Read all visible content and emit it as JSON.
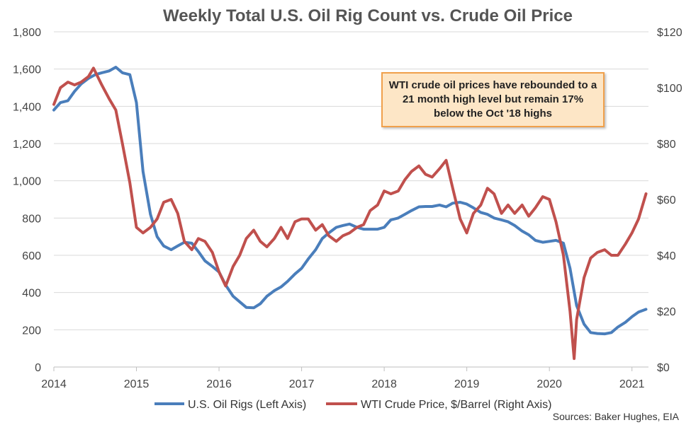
{
  "chart_data": {
    "type": "line",
    "title": "Weekly Total U.S. Oil Rig Count vs. Crude Oil Price",
    "x_ticks": [
      "2014",
      "2015",
      "2016",
      "2017",
      "2018",
      "2019",
      "2020",
      "2021"
    ],
    "x_range": [
      2014.0,
      2021.2
    ],
    "y_left": {
      "range": [
        0,
        1800
      ],
      "ticks": [
        "0",
        "200",
        "400",
        "600",
        "800",
        "1,000",
        "1,200",
        "1,400",
        "1,600",
        "1,800"
      ]
    },
    "y_right": {
      "range": [
        0,
        120
      ],
      "ticks": [
        "$0",
        "$20",
        "$40",
        "$60",
        "$80",
        "$100",
        "$120"
      ]
    },
    "grid": "horizontal",
    "legend_position": "bottom",
    "series": [
      {
        "name": "U.S. Oil Rigs (Left Axis)",
        "axis": "left",
        "color": "#4a7ebb",
        "points": [
          [
            2014.0,
            1380
          ],
          [
            2014.08,
            1420
          ],
          [
            2014.17,
            1430
          ],
          [
            2014.25,
            1480
          ],
          [
            2014.33,
            1520
          ],
          [
            2014.42,
            1550
          ],
          [
            2014.5,
            1570
          ],
          [
            2014.58,
            1580
          ],
          [
            2014.67,
            1590
          ],
          [
            2014.75,
            1610
          ],
          [
            2014.83,
            1580
          ],
          [
            2014.92,
            1570
          ],
          [
            2015.0,
            1420
          ],
          [
            2015.08,
            1050
          ],
          [
            2015.17,
            820
          ],
          [
            2015.25,
            700
          ],
          [
            2015.33,
            650
          ],
          [
            2015.42,
            630
          ],
          [
            2015.5,
            650
          ],
          [
            2015.58,
            670
          ],
          [
            2015.67,
            665
          ],
          [
            2015.75,
            620
          ],
          [
            2015.83,
            570
          ],
          [
            2015.92,
            540
          ],
          [
            2016.0,
            510
          ],
          [
            2016.08,
            440
          ],
          [
            2016.17,
            380
          ],
          [
            2016.25,
            350
          ],
          [
            2016.33,
            320
          ],
          [
            2016.42,
            318
          ],
          [
            2016.5,
            340
          ],
          [
            2016.58,
            380
          ],
          [
            2016.67,
            410
          ],
          [
            2016.75,
            430
          ],
          [
            2016.83,
            460
          ],
          [
            2016.92,
            500
          ],
          [
            2017.0,
            530
          ],
          [
            2017.08,
            580
          ],
          [
            2017.17,
            630
          ],
          [
            2017.25,
            690
          ],
          [
            2017.33,
            720
          ],
          [
            2017.42,
            750
          ],
          [
            2017.5,
            760
          ],
          [
            2017.58,
            768
          ],
          [
            2017.67,
            750
          ],
          [
            2017.75,
            740
          ],
          [
            2017.83,
            740
          ],
          [
            2017.92,
            740
          ],
          [
            2018.0,
            750
          ],
          [
            2018.08,
            790
          ],
          [
            2018.17,
            800
          ],
          [
            2018.25,
            820
          ],
          [
            2018.33,
            840
          ],
          [
            2018.42,
            860
          ],
          [
            2018.5,
            862
          ],
          [
            2018.58,
            862
          ],
          [
            2018.67,
            870
          ],
          [
            2018.75,
            860
          ],
          [
            2018.83,
            880
          ],
          [
            2018.92,
            885
          ],
          [
            2019.0,
            875
          ],
          [
            2019.08,
            855
          ],
          [
            2019.17,
            830
          ],
          [
            2019.25,
            820
          ],
          [
            2019.33,
            800
          ],
          [
            2019.42,
            790
          ],
          [
            2019.5,
            780
          ],
          [
            2019.58,
            760
          ],
          [
            2019.67,
            730
          ],
          [
            2019.75,
            710
          ],
          [
            2019.83,
            680
          ],
          [
            2019.92,
            670
          ],
          [
            2020.0,
            675
          ],
          [
            2020.08,
            680
          ],
          [
            2020.17,
            665
          ],
          [
            2020.25,
            530
          ],
          [
            2020.33,
            330
          ],
          [
            2020.42,
            230
          ],
          [
            2020.5,
            185
          ],
          [
            2020.58,
            180
          ],
          [
            2020.67,
            178
          ],
          [
            2020.75,
            185
          ],
          [
            2020.83,
            215
          ],
          [
            2020.92,
            240
          ],
          [
            2021.0,
            270
          ],
          [
            2021.08,
            295
          ],
          [
            2021.17,
            310
          ]
        ]
      },
      {
        "name": "WTI Crude Price, $/Barrel (Right Axis)",
        "axis": "right",
        "color": "#c0504d",
        "points": [
          [
            2014.0,
            94
          ],
          [
            2014.08,
            100
          ],
          [
            2014.17,
            102
          ],
          [
            2014.25,
            101
          ],
          [
            2014.33,
            102
          ],
          [
            2014.42,
            104
          ],
          [
            2014.48,
            107
          ],
          [
            2014.58,
            101
          ],
          [
            2014.67,
            96
          ],
          [
            2014.75,
            92
          ],
          [
            2014.83,
            80
          ],
          [
            2014.92,
            66
          ],
          [
            2015.0,
            50
          ],
          [
            2015.08,
            48
          ],
          [
            2015.17,
            50
          ],
          [
            2015.25,
            53
          ],
          [
            2015.33,
            59
          ],
          [
            2015.42,
            60
          ],
          [
            2015.5,
            55
          ],
          [
            2015.58,
            45
          ],
          [
            2015.67,
            42
          ],
          [
            2015.75,
            46
          ],
          [
            2015.83,
            45
          ],
          [
            2015.92,
            41
          ],
          [
            2016.0,
            34
          ],
          [
            2016.08,
            29
          ],
          [
            2016.17,
            36
          ],
          [
            2016.25,
            40
          ],
          [
            2016.33,
            46
          ],
          [
            2016.42,
            49
          ],
          [
            2016.5,
            45
          ],
          [
            2016.58,
            43
          ],
          [
            2016.67,
            46
          ],
          [
            2016.75,
            50
          ],
          [
            2016.83,
            46
          ],
          [
            2016.92,
            52
          ],
          [
            2017.0,
            53
          ],
          [
            2017.08,
            53
          ],
          [
            2017.17,
            49
          ],
          [
            2017.25,
            51
          ],
          [
            2017.33,
            47
          ],
          [
            2017.42,
            45
          ],
          [
            2017.5,
            47
          ],
          [
            2017.58,
            48
          ],
          [
            2017.67,
            50
          ],
          [
            2017.75,
            51
          ],
          [
            2017.83,
            56
          ],
          [
            2017.92,
            58
          ],
          [
            2018.0,
            63
          ],
          [
            2018.08,
            62
          ],
          [
            2018.17,
            63
          ],
          [
            2018.25,
            67
          ],
          [
            2018.33,
            70
          ],
          [
            2018.42,
            72
          ],
          [
            2018.5,
            69
          ],
          [
            2018.58,
            68
          ],
          [
            2018.67,
            71
          ],
          [
            2018.75,
            74
          ],
          [
            2018.83,
            64
          ],
          [
            2018.92,
            53
          ],
          [
            2019.0,
            48
          ],
          [
            2019.08,
            55
          ],
          [
            2019.17,
            58
          ],
          [
            2019.25,
            64
          ],
          [
            2019.33,
            62
          ],
          [
            2019.42,
            55
          ],
          [
            2019.5,
            58
          ],
          [
            2019.58,
            55
          ],
          [
            2019.67,
            58
          ],
          [
            2019.75,
            54
          ],
          [
            2019.83,
            57
          ],
          [
            2019.92,
            61
          ],
          [
            2020.0,
            60
          ],
          [
            2020.08,
            52
          ],
          [
            2020.17,
            40
          ],
          [
            2020.25,
            20
          ],
          [
            2020.3,
            3
          ],
          [
            2020.33,
            17
          ],
          [
            2020.42,
            32
          ],
          [
            2020.5,
            39
          ],
          [
            2020.58,
            41
          ],
          [
            2020.67,
            42
          ],
          [
            2020.75,
            40
          ],
          [
            2020.83,
            40
          ],
          [
            2020.92,
            44
          ],
          [
            2021.0,
            48
          ],
          [
            2021.08,
            53
          ],
          [
            2021.17,
            62
          ]
        ]
      }
    ],
    "annotation": "WTI crude oil prices have rebounded to a 21 month high level but remain 17% below the Oct '18 highs",
    "source": "Sources: Baker Hughes, EIA"
  }
}
